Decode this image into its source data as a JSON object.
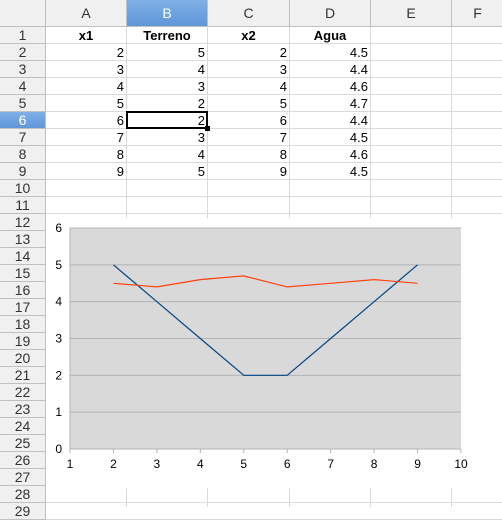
{
  "columns": [
    "A",
    "B",
    "C",
    "D",
    "E",
    "F"
  ],
  "selected_column": "B",
  "rows": [
    "1",
    "2",
    "3",
    "4",
    "5",
    "6",
    "7",
    "8",
    "9",
    "10",
    "11",
    "12",
    "13",
    "14",
    "15",
    "16",
    "17",
    "18",
    "19",
    "20",
    "21",
    "22",
    "23",
    "24",
    "25",
    "26",
    "27",
    "28",
    "29"
  ],
  "selected_row": "6",
  "table": {
    "headers": [
      "x1",
      "Terreno",
      "x2",
      "Agua"
    ],
    "rows": [
      [
        "2",
        "5",
        "2",
        "4.5"
      ],
      [
        "3",
        "4",
        "3",
        "4.4"
      ],
      [
        "4",
        "3",
        "4",
        "4.6"
      ],
      [
        "5",
        "2",
        "5",
        "4.7"
      ],
      [
        "6",
        "2",
        "6",
        "4.4"
      ],
      [
        "7",
        "3",
        "7",
        "4.5"
      ],
      [
        "8",
        "4",
        "8",
        "4.6"
      ],
      [
        "9",
        "5",
        "9",
        "4.5"
      ]
    ]
  },
  "chart_data": {
    "type": "line",
    "x_ticks": [
      "1",
      "2",
      "3",
      "4",
      "5",
      "6",
      "7",
      "8",
      "9",
      "10"
    ],
    "y_ticks": [
      "0",
      "1",
      "2",
      "3",
      "4",
      "5",
      "6"
    ],
    "xlim": [
      1,
      10
    ],
    "ylim": [
      0,
      6
    ],
    "grid": true,
    "plot_background": "#d9d9d9",
    "series": [
      {
        "color": "#004586",
        "x": [
          2,
          3,
          4,
          5,
          6,
          7,
          8,
          9
        ],
        "values": [
          5,
          4,
          3,
          2,
          2,
          3,
          4,
          5
        ]
      },
      {
        "color": "#ff420e",
        "x": [
          2,
          3,
          4,
          5,
          6,
          7,
          8,
          9
        ],
        "values": [
          4.5,
          4.4,
          4.6,
          4.7,
          4.4,
          4.5,
          4.6,
          4.5
        ]
      }
    ]
  },
  "colors": {
    "selection_header": "#5f97d8",
    "grid": "#dadada"
  }
}
